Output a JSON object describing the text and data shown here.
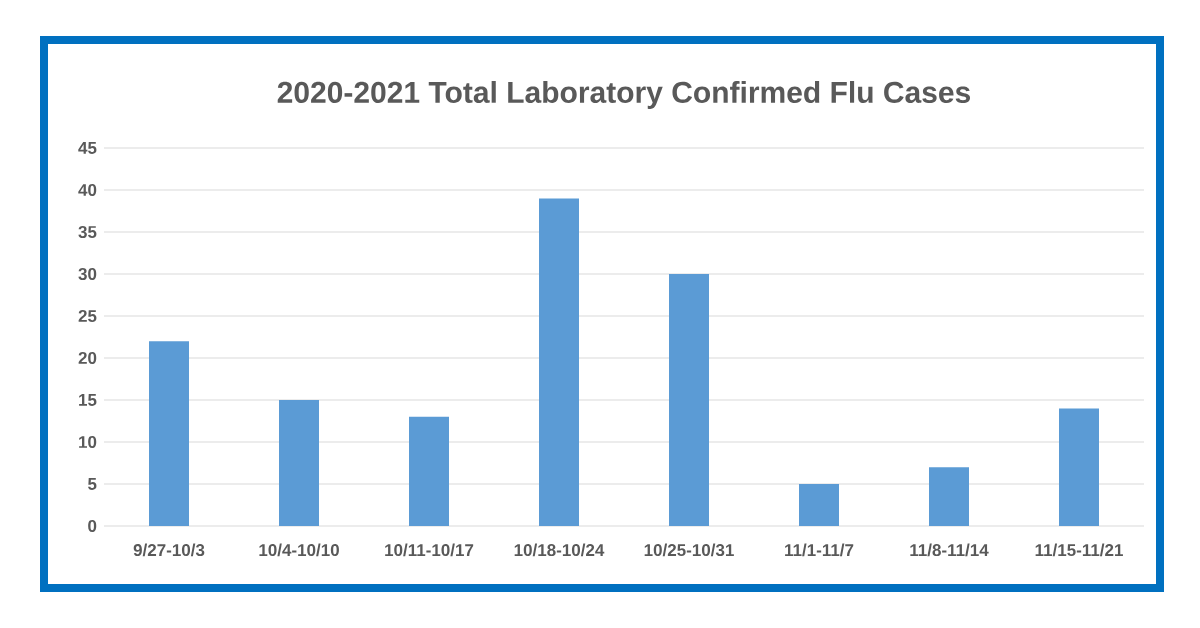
{
  "chart_data": {
    "type": "bar",
    "title": "2020-2021 Total Laboratory Confirmed Flu Cases",
    "categories": [
      "9/27-10/3",
      "10/4-10/10",
      "10/11-10/17",
      "10/18-10/24",
      "10/25-10/31",
      "11/1-11/7",
      "11/8-11/14",
      "11/15-11/21"
    ],
    "values": [
      22,
      15,
      13,
      39,
      30,
      5,
      7,
      14
    ],
    "color": "#5b9bd5",
    "ylim": [
      0,
      45
    ],
    "yticks": [
      0,
      5,
      10,
      15,
      20,
      25,
      30,
      35,
      40,
      45
    ],
    "grid": "y"
  }
}
